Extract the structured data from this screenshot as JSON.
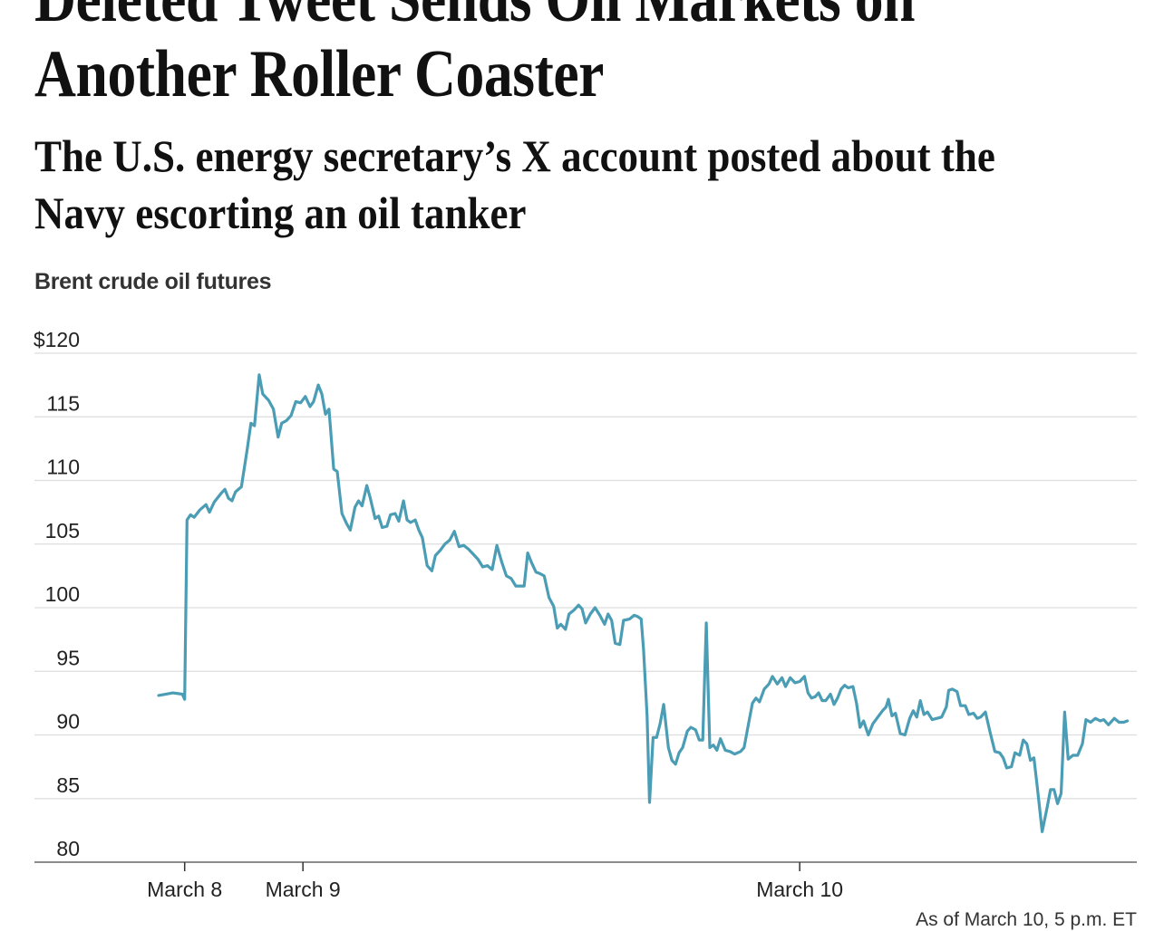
{
  "headline": {
    "top_line": "Deleted Tweet Sends Oil Markets on",
    "main_line": "Another Roller Coaster"
  },
  "dek": {
    "line1": "The U.S. energy secretary’s X account posted about the",
    "line2": "Navy escorting an oil tanker"
  },
  "chart_label": "Brent crude oil futures",
  "source_note": "As of March 10, 5 p.m. ET",
  "colors": {
    "line": "#4a9db4",
    "grid": "#dddddd",
    "axis": "#666666"
  },
  "chart_data": {
    "type": "line",
    "title": "",
    "ylabel": "",
    "xlabel": "",
    "ylim": [
      80,
      120
    ],
    "xlim": [
      -1.27,
      8.05
    ],
    "y_ticks": [
      {
        "value": 120,
        "label": "$120"
      },
      {
        "value": 115,
        "label": "115"
      },
      {
        "value": 110,
        "label": "110"
      },
      {
        "value": 105,
        "label": "105"
      },
      {
        "value": 100,
        "label": "100"
      },
      {
        "value": 95,
        "label": "95"
      },
      {
        "value": 90,
        "label": "90"
      },
      {
        "value": 85,
        "label": "85"
      },
      {
        "value": 80,
        "label": "80"
      }
    ],
    "x_ticks": [
      {
        "value": 0,
        "label": "March 8"
      },
      {
        "value": 1,
        "label": "March 9"
      },
      {
        "value": 5.2,
        "label": "March 10"
      }
    ],
    "series": [
      {
        "values": [
          [
            -0.22,
            93.1
          ],
          [
            -0.1,
            93.3
          ],
          [
            -0.02,
            93.2
          ],
          [
            0.0,
            92.8
          ],
          [
            0.02,
            106.9
          ],
          [
            0.05,
            107.3
          ],
          [
            0.08,
            107.1
          ],
          [
            0.13,
            107.7
          ],
          [
            0.18,
            108.1
          ],
          [
            0.21,
            107.5
          ],
          [
            0.25,
            108.3
          ],
          [
            0.31,
            109.0
          ],
          [
            0.34,
            109.3
          ],
          [
            0.37,
            108.6
          ],
          [
            0.4,
            108.4
          ],
          [
            0.43,
            109.1
          ],
          [
            0.48,
            109.5
          ],
          [
            0.53,
            112.5
          ],
          [
            0.56,
            114.5
          ],
          [
            0.59,
            114.3
          ],
          [
            0.63,
            118.3
          ],
          [
            0.66,
            116.8
          ],
          [
            0.71,
            116.3
          ],
          [
            0.75,
            115.6
          ],
          [
            0.79,
            113.4
          ],
          [
            0.82,
            114.5
          ],
          [
            0.86,
            114.7
          ],
          [
            0.9,
            115.1
          ],
          [
            0.94,
            116.2
          ],
          [
            0.98,
            116.1
          ],
          [
            1.02,
            116.6
          ],
          [
            1.06,
            115.8
          ],
          [
            1.09,
            116.2
          ],
          [
            1.13,
            117.5
          ],
          [
            1.16,
            116.8
          ],
          [
            1.19,
            115.2
          ],
          [
            1.22,
            115.6
          ],
          [
            1.26,
            110.9
          ],
          [
            1.29,
            110.7
          ],
          [
            1.33,
            107.4
          ],
          [
            1.37,
            106.6
          ],
          [
            1.4,
            106.1
          ],
          [
            1.44,
            107.9
          ],
          [
            1.47,
            108.4
          ],
          [
            1.5,
            108.0
          ],
          [
            1.54,
            109.6
          ],
          [
            1.57,
            108.6
          ],
          [
            1.61,
            107.0
          ],
          [
            1.64,
            107.2
          ],
          [
            1.67,
            106.3
          ],
          [
            1.71,
            106.4
          ],
          [
            1.74,
            107.3
          ],
          [
            1.78,
            107.4
          ],
          [
            1.81,
            106.8
          ],
          [
            1.85,
            108.4
          ],
          [
            1.88,
            106.9
          ],
          [
            1.91,
            106.7
          ],
          [
            1.95,
            106.9
          ],
          [
            1.98,
            106.1
          ],
          [
            2.01,
            105.5
          ],
          [
            2.05,
            103.3
          ],
          [
            2.09,
            102.9
          ],
          [
            2.12,
            104.1
          ],
          [
            2.16,
            104.5
          ],
          [
            2.2,
            105.0
          ],
          [
            2.24,
            105.3
          ],
          [
            2.28,
            106.0
          ],
          [
            2.32,
            104.8
          ],
          [
            2.36,
            104.9
          ],
          [
            2.4,
            104.6
          ],
          [
            2.44,
            104.2
          ],
          [
            2.48,
            103.8
          ],
          [
            2.52,
            103.2
          ],
          [
            2.56,
            103.3
          ],
          [
            2.6,
            103.0
          ],
          [
            2.64,
            104.9
          ],
          [
            2.68,
            103.6
          ],
          [
            2.72,
            102.5
          ],
          [
            2.76,
            102.3
          ],
          [
            2.8,
            101.7
          ],
          [
            2.84,
            101.7
          ],
          [
            2.87,
            101.7
          ],
          [
            2.9,
            104.3
          ],
          [
            2.93,
            103.6
          ],
          [
            2.97,
            102.8
          ],
          [
            3.0,
            102.7
          ],
          [
            3.04,
            102.5
          ],
          [
            3.08,
            100.8
          ],
          [
            3.12,
            100.1
          ],
          [
            3.15,
            98.4
          ],
          [
            3.18,
            98.7
          ],
          [
            3.22,
            98.3
          ],
          [
            3.25,
            99.5
          ],
          [
            3.29,
            99.8
          ],
          [
            3.33,
            100.2
          ],
          [
            3.36,
            99.9
          ],
          [
            3.39,
            98.8
          ],
          [
            3.43,
            99.5
          ],
          [
            3.47,
            100.0
          ],
          [
            3.51,
            99.4
          ],
          [
            3.55,
            98.7
          ],
          [
            3.58,
            99.5
          ],
          [
            3.61,
            99.0
          ],
          [
            3.64,
            97.2
          ],
          [
            3.68,
            97.1
          ],
          [
            3.71,
            99.0
          ],
          [
            3.76,
            99.1
          ],
          [
            3.8,
            99.4
          ],
          [
            3.83,
            99.3
          ],
          [
            3.86,
            99.1
          ],
          [
            3.88,
            96.7
          ],
          [
            3.91,
            91.5
          ],
          [
            3.93,
            84.7
          ],
          [
            3.96,
            89.8
          ],
          [
            3.99,
            89.8
          ],
          [
            4.02,
            90.9
          ],
          [
            4.05,
            92.4
          ],
          [
            4.09,
            89.0
          ],
          [
            4.12,
            88.0
          ],
          [
            4.15,
            87.7
          ],
          [
            4.18,
            88.6
          ],
          [
            4.21,
            89.0
          ],
          [
            4.25,
            90.3
          ],
          [
            4.28,
            90.6
          ],
          [
            4.32,
            90.4
          ],
          [
            4.35,
            89.6
          ],
          [
            4.38,
            89.6
          ],
          [
            4.41,
            98.8
          ],
          [
            4.44,
            89.0
          ],
          [
            4.47,
            89.2
          ],
          [
            4.5,
            88.8
          ],
          [
            4.53,
            89.7
          ],
          [
            4.57,
            88.8
          ],
          [
            4.61,
            88.7
          ],
          [
            4.65,
            88.5
          ],
          [
            4.7,
            88.7
          ],
          [
            4.73,
            89.0
          ],
          [
            4.76,
            90.5
          ],
          [
            4.8,
            92.5
          ],
          [
            4.83,
            92.9
          ],
          [
            4.86,
            92.6
          ],
          [
            4.9,
            93.6
          ],
          [
            4.94,
            94.0
          ],
          [
            4.97,
            94.6
          ],
          [
            5.01,
            94.0
          ],
          [
            5.05,
            94.5
          ],
          [
            5.08,
            93.8
          ],
          [
            5.12,
            94.5
          ],
          [
            5.16,
            94.1
          ],
          [
            5.2,
            94.2
          ],
          [
            5.24,
            94.6
          ],
          [
            5.27,
            93.3
          ],
          [
            5.3,
            92.9
          ],
          [
            5.33,
            93.0
          ],
          [
            5.36,
            93.3
          ],
          [
            5.39,
            92.7
          ],
          [
            5.42,
            92.7
          ],
          [
            5.46,
            93.2
          ],
          [
            5.49,
            92.4
          ],
          [
            5.52,
            92.9
          ],
          [
            5.55,
            93.6
          ],
          [
            5.58,
            93.9
          ],
          [
            5.61,
            93.7
          ],
          [
            5.65,
            93.8
          ],
          [
            5.68,
            92.5
          ],
          [
            5.71,
            90.6
          ],
          [
            5.74,
            91.1
          ],
          [
            5.78,
            90.0
          ],
          [
            5.82,
            90.9
          ],
          [
            5.86,
            91.4
          ],
          [
            5.9,
            91.9
          ],
          [
            5.93,
            92.2
          ],
          [
            5.95,
            92.8
          ],
          [
            5.98,
            91.5
          ],
          [
            6.01,
            91.7
          ],
          [
            6.05,
            90.1
          ],
          [
            6.09,
            90.0
          ],
          [
            6.13,
            91.3
          ],
          [
            6.16,
            91.9
          ],
          [
            6.19,
            91.4
          ],
          [
            6.22,
            92.7
          ],
          [
            6.25,
            91.6
          ],
          [
            6.28,
            91.8
          ],
          [
            6.32,
            91.2
          ],
          [
            6.36,
            91.3
          ],
          [
            6.4,
            91.4
          ],
          [
            6.44,
            92.2
          ],
          [
            6.46,
            93.5
          ],
          [
            6.49,
            93.6
          ],
          [
            6.53,
            93.4
          ],
          [
            6.56,
            92.3
          ],
          [
            6.6,
            92.3
          ],
          [
            6.63,
            91.6
          ],
          [
            6.67,
            91.7
          ],
          [
            6.7,
            91.3
          ],
          [
            6.73,
            91.4
          ],
          [
            6.77,
            91.8
          ],
          [
            6.81,
            90.2
          ],
          [
            6.85,
            88.7
          ],
          [
            6.89,
            88.6
          ],
          [
            6.92,
            88.2
          ],
          [
            6.95,
            87.4
          ],
          [
            6.99,
            87.5
          ],
          [
            7.02,
            88.6
          ],
          [
            7.06,
            88.4
          ],
          [
            7.09,
            89.6
          ],
          [
            7.12,
            89.3
          ],
          [
            7.15,
            88.0
          ],
          [
            7.18,
            88.2
          ],
          [
            7.21,
            85.8
          ],
          [
            7.25,
            82.4
          ],
          [
            7.29,
            84.2
          ],
          [
            7.32,
            85.7
          ],
          [
            7.35,
            85.7
          ],
          [
            7.38,
            84.6
          ],
          [
            7.41,
            85.4
          ],
          [
            7.44,
            91.8
          ],
          [
            7.47,
            88.1
          ],
          [
            7.51,
            88.4
          ],
          [
            7.55,
            88.4
          ],
          [
            7.59,
            89.3
          ],
          [
            7.62,
            91.2
          ],
          [
            7.66,
            91.0
          ],
          [
            7.7,
            91.3
          ],
          [
            7.74,
            91.1
          ],
          [
            7.77,
            91.2
          ],
          [
            7.81,
            90.8
          ],
          [
            7.86,
            91.3
          ],
          [
            7.9,
            91.0
          ],
          [
            7.94,
            91.0
          ],
          [
            7.97,
            91.1
          ]
        ]
      }
    ]
  }
}
